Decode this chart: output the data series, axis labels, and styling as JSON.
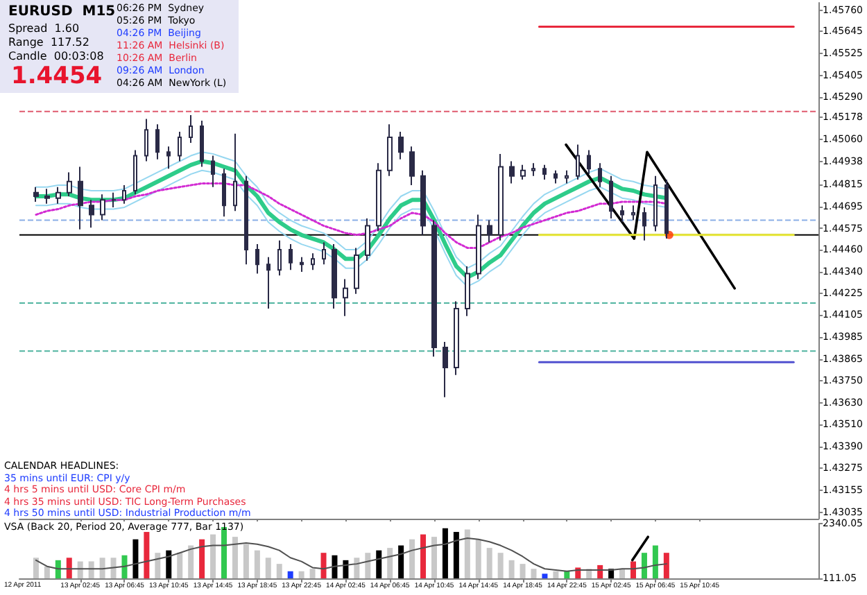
{
  "chart_data": [
    {
      "type": "candlestick",
      "color": "#2a2a46",
      "x": [
        "--04-12T22:45",
        "--04-12T23:45",
        "--04-13T00:45",
        "--04-13T01:45",
        "--04-13T02:45",
        "--04-13T03:45",
        "--04-13T04:45",
        "--04-13T05:45",
        "--04-13T06:45",
        "--04-13T07:45",
        "--04-13T08:45",
        "--04-13T09:45",
        "--04-13T10:45",
        "--04-13T11:45",
        "--04-13T12:45",
        "--04-13T13:45",
        "--04-13T14:45",
        "--04-13T15:45",
        "--04-13T16:45",
        "--04-13T17:45",
        "--04-13T18:45",
        "--04-13T19:45",
        "--04-13T20:45",
        "--04-13T21:45",
        "--04-13T22:45",
        "--04-13T23:45",
        "--04-14T00:45",
        "--04-14T01:45",
        "--04-14T02:45",
        "--04-14T03:45",
        "--04-14T04:45",
        "--04-14T05:45",
        "--04-14T06:45",
        "--04-14T07:45",
        "--04-14T08:45",
        "--04-14T09:45",
        "--04-14T10:45",
        "--04-14T11:45",
        "--04-14T12:45",
        "--04-14T13:45",
        "--04-14T14:45",
        "--04-14T15:45",
        "--04-14T16:45",
        "--04-14T17:45",
        "--04-14T18:45",
        "--04-14T19:45",
        "--04-14T20:45",
        "--04-14T21:45",
        "--04-14T22:45",
        "--04-14T23:45",
        "--04-15T00:45",
        "--04-15T01:45",
        "--04-15T02:45",
        "--04-15T03:45",
        "--04-15T04:45",
        "--04-15T05:45",
        "--04-15T06:45",
        "--04-15T07:45"
      ],
      "ohlc": [
        [
          1.4477,
          1.448,
          1.4472,
          1.4475
        ],
        [
          1.4475,
          1.4479,
          1.4471,
          1.4474
        ],
        [
          1.4474,
          1.448,
          1.4471,
          1.4477
        ],
        [
          1.4477,
          1.4488,
          1.4475,
          1.4483
        ],
        [
          1.4483,
          1.4491,
          1.4457,
          1.447
        ],
        [
          1.447,
          1.4473,
          1.4458,
          1.4465
        ],
        [
          1.4465,
          1.4476,
          1.4462,
          1.4473
        ],
        [
          1.4473,
          1.4477,
          1.4469,
          1.4473
        ],
        [
          1.4473,
          1.4481,
          1.4471,
          1.4478
        ],
        [
          1.4478,
          1.45,
          1.4476,
          1.4497
        ],
        [
          1.4497,
          1.4517,
          1.4494,
          1.4511
        ],
        [
          1.4511,
          1.4514,
          1.4495,
          1.4499
        ],
        [
          1.4499,
          1.4502,
          1.449,
          1.4497
        ],
        [
          1.4497,
          1.451,
          1.4494,
          1.4507
        ],
        [
          1.4507,
          1.4519,
          1.4504,
          1.4513
        ],
        [
          1.4513,
          1.4516,
          1.4491,
          1.4494
        ],
        [
          1.4494,
          1.4497,
          1.448,
          1.4487
        ],
        [
          1.4487,
          1.449,
          1.4464,
          1.447
        ],
        [
          1.447,
          1.4509,
          1.4467,
          1.4483
        ],
        [
          1.4483,
          1.4486,
          1.4438,
          1.4446
        ],
        [
          1.4446,
          1.4449,
          1.4433,
          1.4438
        ],
        [
          1.4438,
          1.4442,
          1.4414,
          1.4435
        ],
        [
          1.4435,
          1.4451,
          1.4432,
          1.4446
        ],
        [
          1.4446,
          1.4449,
          1.4435,
          1.4439
        ],
        [
          1.4439,
          1.4442,
          1.4434,
          1.4438
        ],
        [
          1.4438,
          1.4444,
          1.4435,
          1.4441
        ],
        [
          1.4441,
          1.445,
          1.4438,
          1.4446
        ],
        [
          1.4446,
          1.4449,
          1.4414,
          1.442
        ],
        [
          1.442,
          1.443,
          1.441,
          1.4425
        ],
        [
          1.4425,
          1.4447,
          1.4422,
          1.4443
        ],
        [
          1.4443,
          1.4463,
          1.444,
          1.4459
        ],
        [
          1.4459,
          1.4493,
          1.4456,
          1.4489
        ],
        [
          1.4489,
          1.4514,
          1.4486,
          1.4507
        ],
        [
          1.4507,
          1.451,
          1.4495,
          1.4499
        ],
        [
          1.4499,
          1.4502,
          1.4481,
          1.4486
        ],
        [
          1.4486,
          1.4489,
          1.4454,
          1.4459
        ],
        [
          1.4459,
          1.4462,
          1.4388,
          1.4393
        ],
        [
          1.4393,
          1.4396,
          1.4366,
          1.4382
        ],
        [
          1.4382,
          1.4418,
          1.4378,
          1.4414
        ],
        [
          1.4414,
          1.4437,
          1.441,
          1.4433
        ],
        [
          1.4433,
          1.4465,
          1.443,
          1.4459
        ],
        [
          1.4459,
          1.4462,
          1.445,
          1.4454
        ],
        [
          1.4454,
          1.4498,
          1.4451,
          1.4491
        ],
        [
          1.4491,
          1.4494,
          1.4482,
          1.4486
        ],
        [
          1.4486,
          1.4492,
          1.4484,
          1.4489
        ],
        [
          1.4489,
          1.4493,
          1.4486,
          1.449
        ],
        [
          1.449,
          1.4492,
          1.4484,
          1.4487
        ],
        [
          1.4487,
          1.4489,
          1.4482,
          1.4485
        ],
        [
          1.4485,
          1.4489,
          1.4482,
          1.4486
        ],
        [
          1.4486,
          1.4503,
          1.4484,
          1.4497
        ],
        [
          1.4497,
          1.45,
          1.4487,
          1.449
        ],
        [
          1.449,
          1.4493,
          1.448,
          1.4483
        ],
        [
          1.4483,
          1.4486,
          1.4463,
          1.4467
        ],
        [
          1.4467,
          1.447,
          1.4461,
          1.4465
        ],
        [
          1.4465,
          1.447,
          1.4462,
          1.4466
        ],
        [
          1.4466,
          1.4469,
          1.4451,
          1.4459
        ],
        [
          1.4459,
          1.4486,
          1.4456,
          1.4481
        ],
        [
          1.4481,
          1.4484,
          1.4452,
          1.4455
        ]
      ],
      "series": [
        {
          "type": "line",
          "color": "#96d7f0",
          "values": [
            1.448,
            1.448,
            1.4481,
            1.4481,
            1.4479,
            1.4478,
            1.4478,
            1.4478,
            1.4479,
            1.4482,
            1.4485,
            1.4488,
            1.4491,
            1.4494,
            1.4497,
            1.4499,
            1.4498,
            1.4496,
            1.4494,
            1.4486,
            1.448,
            1.4471,
            1.4466,
            1.4462,
            1.4459,
            1.4457,
            1.4455,
            1.4451,
            1.4446,
            1.4446,
            1.4451,
            1.4459,
            1.4468,
            1.4475,
            1.4478,
            1.4478,
            1.4467,
            1.4454,
            1.4442,
            1.4436,
            1.4439,
            1.4444,
            1.4448,
            1.4456,
            1.4464,
            1.4471,
            1.4476,
            1.4479,
            1.4482,
            1.4485,
            1.4488,
            1.449,
            1.4487,
            1.4484,
            1.4483,
            1.4481,
            1.448,
            1.4479
          ]
        },
        {
          "type": "line",
          "color": "#96d7f0",
          "values": [
            1.447,
            1.447,
            1.4471,
            1.4471,
            1.4469,
            1.4468,
            1.4468,
            1.4468,
            1.4469,
            1.4472,
            1.4475,
            1.4478,
            1.4481,
            1.4484,
            1.4487,
            1.4489,
            1.4488,
            1.4486,
            1.4484,
            1.4476,
            1.447,
            1.4461,
            1.4456,
            1.4452,
            1.4449,
            1.4447,
            1.4445,
            1.4441,
            1.4436,
            1.4436,
            1.4441,
            1.4449,
            1.4458,
            1.4465,
            1.4468,
            1.4468,
            1.4457,
            1.4444,
            1.4432,
            1.4426,
            1.4429,
            1.4434,
            1.4438,
            1.4446,
            1.4454,
            1.4461,
            1.4466,
            1.4469,
            1.4472,
            1.4475,
            1.4478,
            1.448,
            1.4477,
            1.4474,
            1.4473,
            1.4471,
            1.447,
            1.4469
          ]
        },
        {
          "type": "line",
          "color": "#2ecc8a",
          "values": [
            1.4475,
            1.4475,
            1.4476,
            1.4476,
            1.4474,
            1.4473,
            1.4473,
            1.4473,
            1.4474,
            1.4477,
            1.448,
            1.4483,
            1.4486,
            1.4489,
            1.4492,
            1.4494,
            1.4493,
            1.4491,
            1.4489,
            1.4481,
            1.4475,
            1.4466,
            1.4461,
            1.4457,
            1.4454,
            1.4452,
            1.445,
            1.4446,
            1.4441,
            1.4441,
            1.4446,
            1.4454,
            1.4463,
            1.447,
            1.4473,
            1.4473,
            1.4462,
            1.4449,
            1.4437,
            1.4431,
            1.4434,
            1.4439,
            1.4443,
            1.4451,
            1.4459,
            1.4466,
            1.4471,
            1.4474,
            1.4477,
            1.448,
            1.4483,
            1.4485,
            1.4482,
            1.4479,
            1.4478,
            1.4476,
            1.4475,
            1.4474
          ]
        },
        {
          "type": "line",
          "color": "#d22ad2",
          "line_style": "dotted",
          "values": [
            1.4465,
            1.4467,
            1.4468,
            1.447,
            1.4471,
            1.4472,
            1.4472,
            1.4473,
            1.4473,
            1.4475,
            1.4476,
            1.4478,
            1.4479,
            1.448,
            1.4481,
            1.4482,
            1.4482,
            1.4482,
            1.4481,
            1.4481,
            1.4478,
            1.4475,
            1.4471,
            1.4468,
            1.4465,
            1.4462,
            1.4459,
            1.4457,
            1.4455,
            1.4454,
            1.4455,
            1.4457,
            1.4459,
            1.4463,
            1.4466,
            1.4465,
            1.4461,
            1.4455,
            1.445,
            1.4447,
            1.4447,
            1.445,
            1.4453,
            1.4455,
            1.4458,
            1.446,
            1.4462,
            1.4464,
            1.4466,
            1.4467,
            1.4469,
            1.4471,
            1.4471,
            1.4472,
            1.4472,
            1.4472,
            1.4472,
            1.4471
          ]
        },
        {
          "type": "line",
          "color": "#000000",
          "x": [
            "--04-14T22:40",
            "--04-15T04:50",
            "--04-15T06:00",
            "--04-15T13:55"
          ],
          "values": [
            1.4503,
            1.4452,
            1.4499,
            1.4425
          ]
        },
        {
          "type": "line",
          "color": "#e8283c",
          "x": [
            "--04-14T20:15",
            "--04-15T19:15"
          ],
          "values": [
            1.4567,
            1.4567
          ]
        },
        {
          "type": "line",
          "color": "#e6e632",
          "x": [
            "--04-14T20:15",
            "--04-15T19:15"
          ],
          "values": [
            1.4454,
            1.4454
          ]
        },
        {
          "type": "line",
          "color": "#5050d0",
          "x": [
            "--04-14T20:15",
            "--04-15T19:15"
          ],
          "values": [
            1.4385,
            1.4385
          ]
        },
        {
          "type": "scatter",
          "color": "#ff3300",
          "marker": "circle",
          "x": [
            "--04-15T08:00"
          ],
          "values": [
            1.4454
          ]
        }
      ],
      "ref_lines": [
        {
          "axis": "y",
          "value": 1.4521,
          "color": "#e05a6e",
          "line_style": "dashed"
        },
        {
          "axis": "y",
          "value": 1.4462,
          "color": "#8aaee6",
          "line_style": "dashed"
        },
        {
          "axis": "y",
          "value": 1.4454,
          "color": "#000000",
          "line_style": "solid"
        },
        {
          "axis": "y",
          "value": 1.4417,
          "color": "#50b4a0",
          "line_style": "dashed"
        },
        {
          "axis": "y",
          "value": 1.4391,
          "color": "#50b4a0",
          "line_style": "dashed"
        }
      ],
      "xlim": [
        "--04-12T21:15",
        "--04-15T21:30"
      ],
      "xticks": [
        {
          "value": "--04-13T02:45",
          "label": "13 Apr 02:45"
        },
        {
          "value": "--04-13T06:45",
          "label": "13 Apr 06:45"
        },
        {
          "value": "--04-13T10:45",
          "label": "13 Apr 10:45"
        },
        {
          "value": "--04-13T14:45",
          "label": "13 Apr 14:45"
        },
        {
          "value": "--04-13T18:45",
          "label": "13 Apr 18:45"
        },
        {
          "value": "--04-13T22:45",
          "label": "13 Apr 22:45"
        },
        {
          "value": "--04-14T02:45",
          "label": "14 Apr 02:45"
        },
        {
          "value": "--04-14T06:45",
          "label": "14 Apr 06:45"
        },
        {
          "value": "--04-14T10:45",
          "label": "14 Apr 10:45"
        },
        {
          "value": "--04-14T14:45",
          "label": "14 Apr 14:45"
        },
        {
          "value": "--04-14T18:45",
          "label": "14 Apr 18:45"
        },
        {
          "value": "--04-14T22:45",
          "label": "14 Apr 22:45"
        },
        {
          "value": "--04-15T02:45",
          "label": "15 Apr 02:45"
        },
        {
          "value": "--04-15T06:45",
          "label": "15 Apr 06:45"
        },
        {
          "value": "--04-15T10:45",
          "label": "15 Apr 10:45"
        }
      ],
      "ylim": [
        1.43,
        1.458
      ],
      "yticks": [
        {
          "value": 1.4576,
          "label": "1.45760"
        },
        1.45645,
        1.45525,
        1.45405,
        {
          "value": 1.4529,
          "label": "1.45290"
        },
        1.45178,
        {
          "value": 1.4506,
          "label": "1.45060"
        },
        1.44938,
        1.44815,
        1.44695,
        1.44575,
        {
          "value": 1.4446,
          "label": "1.44460"
        },
        {
          "value": 1.4434,
          "label": "1.44340"
        },
        1.44225,
        1.44105,
        1.43985,
        1.43865,
        {
          "value": 1.4375,
          "label": "1.43750"
        },
        {
          "value": 1.4363,
          "label": "1.43630"
        },
        {
          "value": 1.4351,
          "label": "1.43510"
        },
        {
          "value": 1.4339,
          "label": "1.43390"
        },
        1.43275,
        1.43155,
        1.43035
      ],
      "tick_labels": "y",
      "annotations": [
        "EURUSD  M15",
        "Spread  1.60",
        "Range  117.52",
        "Candle  00:03:08",
        "1.4454",
        "06:26 PM  Sydney",
        "05:26 PM  Tokyo",
        "04:26 PM  Beijing",
        "11:26 AM  Helsinki (B)",
        "10:26 AM  Berlin",
        "09:26 AM  London",
        "04:26 AM  NewYork (L)",
        "CALENDAR HEADLINES:",
        "35 mins until EUR: CPI y/y",
        "4 hrs 5 mins until USD: Core CPI m/m",
        "4 hrs 35 mins until USD: TIC Long-Term Purchases",
        "4 hrs 50 mins until USD: Industrial Production m/m"
      ]
    },
    {
      "type": "bar",
      "x": [
        "--04-12T22:45",
        "--04-12T23:45",
        "--04-13T00:45",
        "--04-13T01:45",
        "--04-13T02:45",
        "--04-13T03:45",
        "--04-13T04:45",
        "--04-13T05:45",
        "--04-13T06:45",
        "--04-13T07:45",
        "--04-13T08:45",
        "--04-13T09:45",
        "--04-13T10:45",
        "--04-13T11:45",
        "--04-13T12:45",
        "--04-13T13:45",
        "--04-13T14:45",
        "--04-13T15:45",
        "--04-13T16:45",
        "--04-13T17:45",
        "--04-13T18:45",
        "--04-13T19:45",
        "--04-13T20:45",
        "--04-13T21:45",
        "--04-13T22:45",
        "--04-13T23:45",
        "--04-14T00:45",
        "--04-14T01:45",
        "--04-14T02:45",
        "--04-14T03:45",
        "--04-14T04:45",
        "--04-14T05:45",
        "--04-14T06:45",
        "--04-14T07:45",
        "--04-14T08:45",
        "--04-14T09:45",
        "--04-14T10:45",
        "--04-14T11:45",
        "--04-14T12:45",
        "--04-14T13:45",
        "--04-14T14:45",
        "--04-14T15:45",
        "--04-14T16:45",
        "--04-14T17:45",
        "--04-14T18:45",
        "--04-14T19:45",
        "--04-14T20:45",
        "--04-14T21:45",
        "--04-14T22:45",
        "--04-14T23:45",
        "--04-15T00:45",
        "--04-15T01:45",
        "--04-15T02:45",
        "--04-15T03:45",
        "--04-15T04:45",
        "--04-15T05:45",
        "--04-15T06:45",
        "--04-15T07:45"
      ],
      "series": [
        {
          "type": "bar",
          "values": [
            950,
            600,
            850,
            950,
            800,
            800,
            950,
            950,
            1050,
            1700,
            2000,
            1150,
            1250,
            1150,
            1450,
            1700,
            1900,
            2200,
            1800,
            1500,
            1250,
            950,
            700,
            400,
            400,
            500,
            1150,
            1050,
            850,
            950,
            1150,
            1250,
            1350,
            1450,
            1700,
            1900,
            1800,
            2150,
            2000,
            2100,
            1700,
            1350,
            1150,
            850,
            700,
            500,
            300,
            400,
            400,
            550,
            500,
            650,
            500,
            500,
            800,
            1150,
            1450,
            1150
          ],
          "colors": [
            "#c8c8c8",
            "#c8c8c8",
            "#32c850",
            "#e8283c",
            "#c8c8c8",
            "#c8c8c8",
            "#c8c8c8",
            "#c8c8c8",
            "#32c850",
            "#000000",
            "#e8283c",
            "#c8c8c8",
            "#000000",
            "#c8c8c8",
            "#c8c8c8",
            "#e8283c",
            "#c8c8c8",
            "#32c850",
            "#c8c8c8",
            "#c8c8c8",
            "#c8c8c8",
            "#c8c8c8",
            "#c8c8c8",
            "#1e3cff",
            "#c8c8c8",
            "#c8c8c8",
            "#e8283c",
            "#000000",
            "#000000",
            "#c8c8c8",
            "#c8c8c8",
            "#000000",
            "#c8c8c8",
            "#000000",
            "#c8c8c8",
            "#e8283c",
            "#c8c8c8",
            "#000000",
            "#000000",
            "#c8c8c8",
            "#c8c8c8",
            "#c8c8c8",
            "#c8c8c8",
            "#c8c8c8",
            "#c8c8c8",
            "#c8c8c8",
            "#1e3cff",
            "#c8c8c8",
            "#32c850",
            "#e8283c",
            "#c8c8c8",
            "#e8283c",
            "#000000",
            "#c8c8c8",
            "#e8283c",
            "#32c850",
            "#32c850",
            "#e8283c"
          ]
        },
        {
          "type": "line",
          "color": "#505050",
          "values": [
            850,
            600,
            500,
            500,
            500,
            500,
            500,
            550,
            600,
            700,
            800,
            900,
            1000,
            1150,
            1300,
            1400,
            1450,
            1450,
            1500,
            1550,
            1500,
            1400,
            1250,
            950,
            800,
            550,
            500,
            600,
            650,
            700,
            800,
            900,
            1000,
            1100,
            1250,
            1350,
            1450,
            1500,
            1650,
            1750,
            1700,
            1600,
            1450,
            1250,
            1000,
            700,
            500,
            450,
            400,
            450,
            450,
            450,
            450,
            500,
            500,
            550,
            650,
            700
          ]
        },
        {
          "type": "line",
          "color": "#000000",
          "x": [
            "--04-15T04:40",
            "--04-15T06:05"
          ],
          "values": [
            850,
            1800
          ]
        }
      ],
      "xlim": [
        "--04-12T21:15",
        "--04-15T21:30"
      ],
      "xticks": [
        {
          "value": "--04-13T02:45",
          "label": "13 Apr 02:45"
        },
        {
          "value": "--04-13T06:45",
          "label": "13 Apr 06:45"
        },
        {
          "value": "--04-13T10:45",
          "label": "13 Apr 10:45"
        },
        {
          "value": "--04-13T14:45",
          "label": "13 Apr 14:45"
        },
        {
          "value": "--04-13T18:45",
          "label": "13 Apr 18:45"
        },
        {
          "value": "--04-13T22:45",
          "label": "13 Apr 22:45"
        },
        {
          "value": "--04-14T02:45",
          "label": "14 Apr 02:45"
        },
        {
          "value": "--04-14T06:45",
          "label": "14 Apr 06:45"
        },
        {
          "value": "--04-14T10:45",
          "label": "14 Apr 10:45"
        },
        {
          "value": "--04-14T14:45",
          "label": "14 Apr 14:45"
        },
        {
          "value": "--04-14T18:45",
          "label": "14 Apr 18:45"
        },
        {
          "value": "--04-14T22:45",
          "label": "14 Apr 22:45"
        },
        {
          "value": "--04-15T02:45",
          "label": "15 Apr 02:45"
        },
        {
          "value": "--04-15T06:45",
          "label": "15 Apr 06:45"
        },
        {
          "value": "--04-15T10:45",
          "label": "15 Apr 10:45"
        }
      ],
      "ylim": [
        111.05,
        2340.05
      ],
      "yticks": [
        111.05,
        2340.05
      ],
      "annotations": [
        "VSA (Back 20, Period 20, Average 777, Bar 1137)",
        "12 Apr 2011"
      ]
    }
  ]
}
